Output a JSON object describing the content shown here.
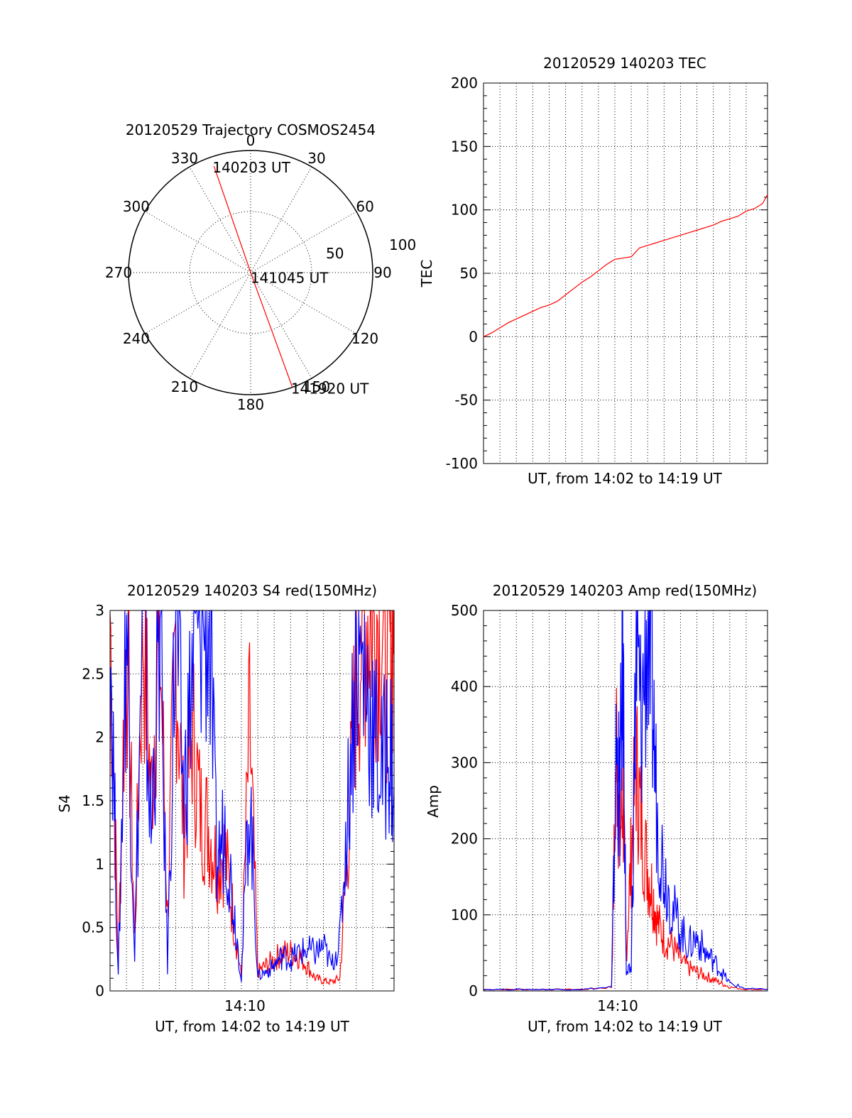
{
  "chart_data": [
    {
      "type": "line",
      "subtype": "polar-trajectory",
      "title": "20120529 Trajectory COSMOS2454",
      "azimuth_labels": [
        "0",
        "30",
        "60",
        "90",
        "120",
        "150",
        "180",
        "210",
        "240",
        "270",
        "300",
        "330"
      ],
      "radius_labels": [
        "50",
        "100"
      ],
      "trajectory": {
        "color": "#ff0000",
        "points": [
          {
            "az": 341,
            "zen": 83
          },
          {
            "az": 160,
            "zen": 3
          },
          {
            "az": 160,
            "zen": 90
          }
        ],
        "point_labels": [
          "140203 UT",
          "141045 UT",
          "141920 UT"
        ]
      }
    },
    {
      "type": "line",
      "title": "20120529 140203 TEC",
      "ylabel": "TEC",
      "xlabel": "UT, from 14:02 to 14:19 UT",
      "xlim": [
        0,
        17.3
      ],
      "ylim": [
        -100,
        200
      ],
      "yticks": [
        "-100",
        "-50",
        "0",
        "50",
        "100",
        "150",
        "200"
      ],
      "xticks": [],
      "series": [
        {
          "color": "#ff0000",
          "x": [
            0,
            0.5,
            1,
            1.5,
            2,
            2.5,
            3,
            3.5,
            4,
            4.5,
            5,
            5.5,
            6,
            6.5,
            7,
            7.5,
            8,
            8.5,
            9,
            9.5,
            10,
            10.5,
            11,
            11.5,
            12,
            12.5,
            13,
            13.5,
            14,
            14.5,
            15,
            15.5,
            16,
            16.5,
            17,
            17.3
          ],
          "y": [
            0,
            3,
            7,
            11,
            14,
            17,
            20,
            23,
            25,
            28,
            33,
            38,
            43,
            47,
            52,
            57,
            61,
            62,
            63,
            70,
            72,
            74,
            76,
            78,
            80,
            82,
            84,
            86,
            88,
            91,
            93,
            95,
            99,
            101,
            105,
            112
          ]
        }
      ]
    },
    {
      "type": "line",
      "title": "20120529 140203 S4 red(150MHz)",
      "ylabel": "S4",
      "xlabel": "UT, from 14:02 to 14:19 UT",
      "xlim": [
        0,
        17.3
      ],
      "ylim": [
        0,
        3
      ],
      "yticks": [
        "0",
        "0.5",
        "1",
        "1.5",
        "2",
        "2.5",
        "3"
      ],
      "xticks": [
        "14:10"
      ],
      "series": [
        {
          "name": "",
          "color": "#ff0000",
          "x": [
            0,
            0.5,
            1,
            1.5,
            2,
            2.5,
            3,
            3.5,
            4,
            4.5,
            5,
            5.5,
            6,
            6.5,
            7,
            7.5,
            8,
            8.5,
            9,
            9.5,
            10,
            10.5,
            11,
            11.5,
            12,
            12.5,
            13,
            13.5,
            14,
            14.5,
            15,
            15.5,
            16,
            16.5,
            17,
            17.3
          ],
          "y": [
            3,
            0.2,
            3,
            0.4,
            3,
            1.5,
            3,
            0.6,
            2.8,
            1.2,
            2.1,
            1.4,
            1.3,
            1,
            1.1,
            0.6,
            0.1,
            2.1,
            0.15,
            0.2,
            0.25,
            0.3,
            0.3,
            0.28,
            0.2,
            0.1,
            0.08,
            0.07,
            0.1,
            1.2,
            2.5,
            3,
            3,
            3,
            2.6,
            3
          ]
        },
        {
          "name": "",
          "color": "#0000ff",
          "x": [
            0,
            0.5,
            1,
            1.5,
            2,
            2.5,
            3,
            3.5,
            4,
            4.5,
            5,
            5.5,
            6,
            6.5,
            7,
            7.5,
            8,
            8.5,
            9,
            9.5,
            10,
            10.5,
            11,
            11.5,
            12,
            12.5,
            13,
            13.5,
            14,
            14.5,
            15,
            15.5,
            16,
            16.5,
            17,
            17.3
          ],
          "y": [
            3,
            0.1,
            3,
            0.3,
            3,
            1.2,
            3,
            0.2,
            3,
            1.5,
            2.5,
            3,
            3,
            1,
            1.3,
            0.7,
            0.1,
            1.6,
            0.12,
            0.15,
            0.2,
            0.28,
            0.25,
            0.3,
            0.32,
            0.3,
            0.35,
            0.2,
            0.4,
            1.5,
            2.7,
            2.5,
            2.1,
            1.7,
            2,
            1.6
          ]
        }
      ]
    },
    {
      "type": "line",
      "title": "20120529 140203 Amp red(150MHz)",
      "ylabel": "Amp",
      "xlabel": "UT, from 14:02 to 14:19 UT",
      "xlim": [
        0,
        17.3
      ],
      "ylim": [
        0,
        500
      ],
      "yticks": [
        "0",
        "100",
        "200",
        "300",
        "400",
        "500"
      ],
      "xticks": [
        "14:10"
      ],
      "series": [
        {
          "name": "",
          "color": "#ff0000",
          "x": [
            0,
            2,
            4,
            6,
            7.8,
            8.1,
            8.3,
            8.5,
            8.7,
            9,
            9.3,
            9.6,
            10,
            10.3,
            10.6,
            11,
            11.5,
            12,
            12.5,
            13,
            13.5,
            14,
            14.5,
            15,
            16,
            17.3
          ],
          "y": [
            2,
            2,
            2,
            2,
            5,
            330,
            200,
            260,
            50,
            180,
            300,
            220,
            160,
            130,
            90,
            70,
            60,
            40,
            30,
            25,
            20,
            15,
            10,
            5,
            2,
            2
          ]
        },
        {
          "name": "",
          "color": "#0000ff",
          "x": [
            0,
            2,
            4,
            6,
            7.8,
            8.1,
            8.3,
            8.5,
            8.7,
            9,
            9.3,
            9.6,
            10,
            10.3,
            10.6,
            11,
            11.5,
            12,
            12.5,
            13,
            13.5,
            14,
            14.5,
            15,
            16,
            17.3
          ],
          "y": [
            2,
            2,
            2,
            2,
            5,
            320,
            250,
            445,
            20,
            30,
            450,
            350,
            490,
            380,
            220,
            160,
            110,
            80,
            60,
            70,
            50,
            40,
            25,
            10,
            3,
            2
          ]
        }
      ]
    }
  ]
}
